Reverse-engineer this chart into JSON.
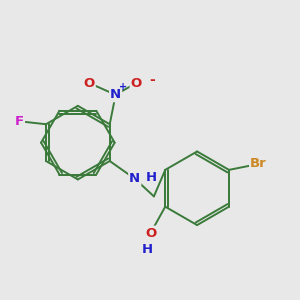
{
  "background_color": "#e8e8e8",
  "bond_color": "#3a7a3a",
  "figsize": [
    3.0,
    3.0
  ],
  "dpi": 100,
  "atom_colors": {
    "N": "#2020cc",
    "O": "#cc2020",
    "F": "#cc20cc",
    "Br": "#cc8822",
    "H": "#2020cc",
    "C": "#3a7a3a"
  },
  "lw": 1.4,
  "font_size": 9.5
}
